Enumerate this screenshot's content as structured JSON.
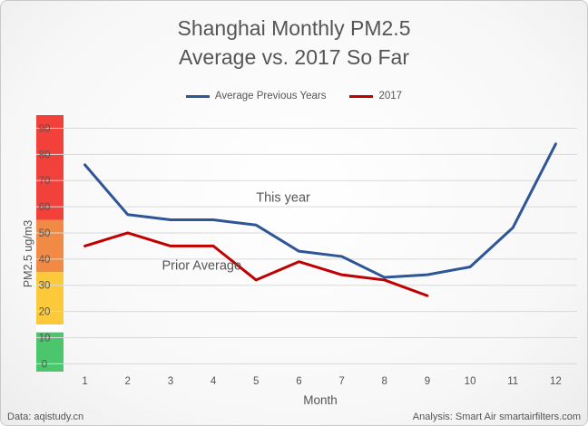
{
  "title_line1": "Shanghai Monthly PM2.5",
  "title_line2": "Average vs. 2017 So Far",
  "source_text": "Data: aqistudy.cn",
  "credit_text": "Analysis: Smart Air smartairfilters.com",
  "annotations": [
    {
      "text": "This year",
      "x": 5.0,
      "y": 62
    },
    {
      "text": "Prior Average",
      "x": 2.8,
      "y": 36
    }
  ],
  "chart_data": {
    "type": "line",
    "title": "Shanghai Monthly PM2.5 Average vs. 2017 So Far",
    "xlabel": "Month",
    "ylabel": "PM2.5 ug/m3",
    "x": [
      1,
      2,
      3,
      4,
      5,
      6,
      7,
      8,
      9,
      10,
      11,
      12
    ],
    "xlim": [
      0.5,
      12.5
    ],
    "ylim": [
      -3,
      95
    ],
    "yticks": [
      0,
      10,
      20,
      30,
      40,
      50,
      60,
      70,
      80,
      90
    ],
    "grid": "horizontal",
    "legend_position": "top",
    "series": [
      {
        "name": "Average Previous Years",
        "color": "#2e5597",
        "values": [
          76,
          57,
          55,
          55,
          53,
          43,
          41,
          33,
          34,
          37,
          52,
          84
        ]
      },
      {
        "name": "2017",
        "color": "#c00000",
        "values": [
          45,
          50,
          45,
          45,
          32,
          39,
          34,
          32,
          26,
          null,
          null,
          null
        ]
      }
    ],
    "bands": [
      {
        "from": 55,
        "to": 95,
        "color": "#f2403a"
      },
      {
        "from": 35,
        "to": 55,
        "color": "#f08a45"
      },
      {
        "from": 15,
        "to": 35,
        "color": "#fcc93a"
      },
      {
        "from": 12,
        "to": 15,
        "color": "#ffffff"
      },
      {
        "from": -3,
        "to": 12,
        "color": "#4cc66c"
      }
    ]
  }
}
